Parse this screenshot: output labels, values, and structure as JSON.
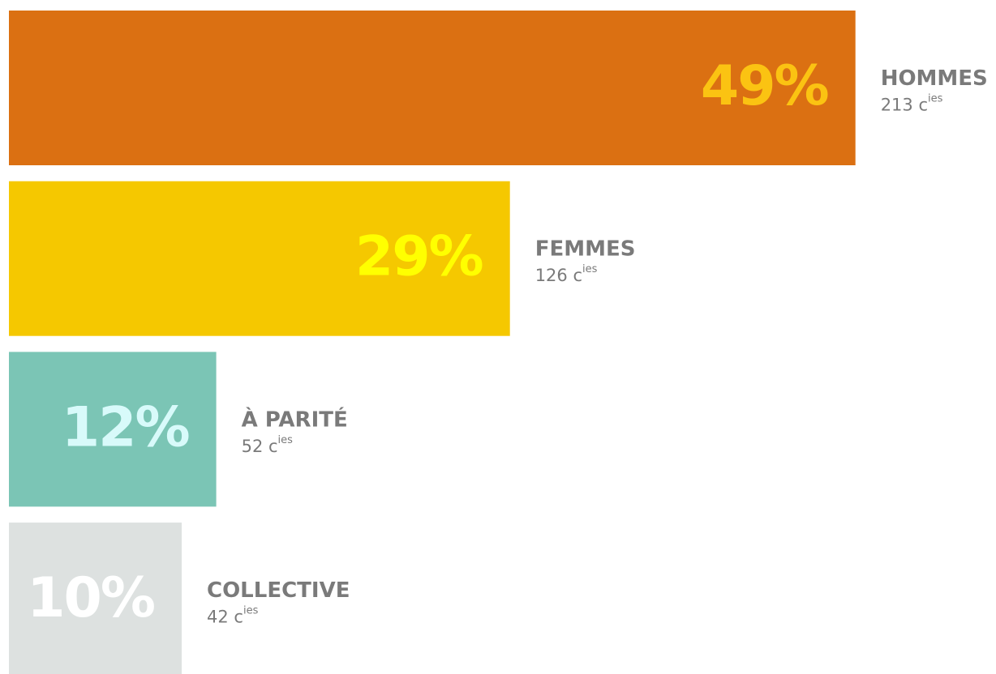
{
  "chart_data": {
    "type": "hbar",
    "categories": [
      "HOMMES",
      "FEMMES",
      "À PARITÉ",
      "COLLECTIVE"
    ],
    "values": [
      49,
      29,
      12,
      10
    ],
    "value_labels": [
      "49%",
      "29%",
      "12%",
      "10%"
    ],
    "colors": [
      "#db7012",
      "#f5c800",
      "#7bc5b5",
      "#dde1e0"
    ],
    "label_colors": [
      "#fbc312",
      "#ffff00",
      "#d8fafa",
      "#ffffff"
    ],
    "count_labels": [
      "213 c",
      "126 c",
      "52 c",
      "42 c"
    ],
    "count_superscript": "ies"
  }
}
